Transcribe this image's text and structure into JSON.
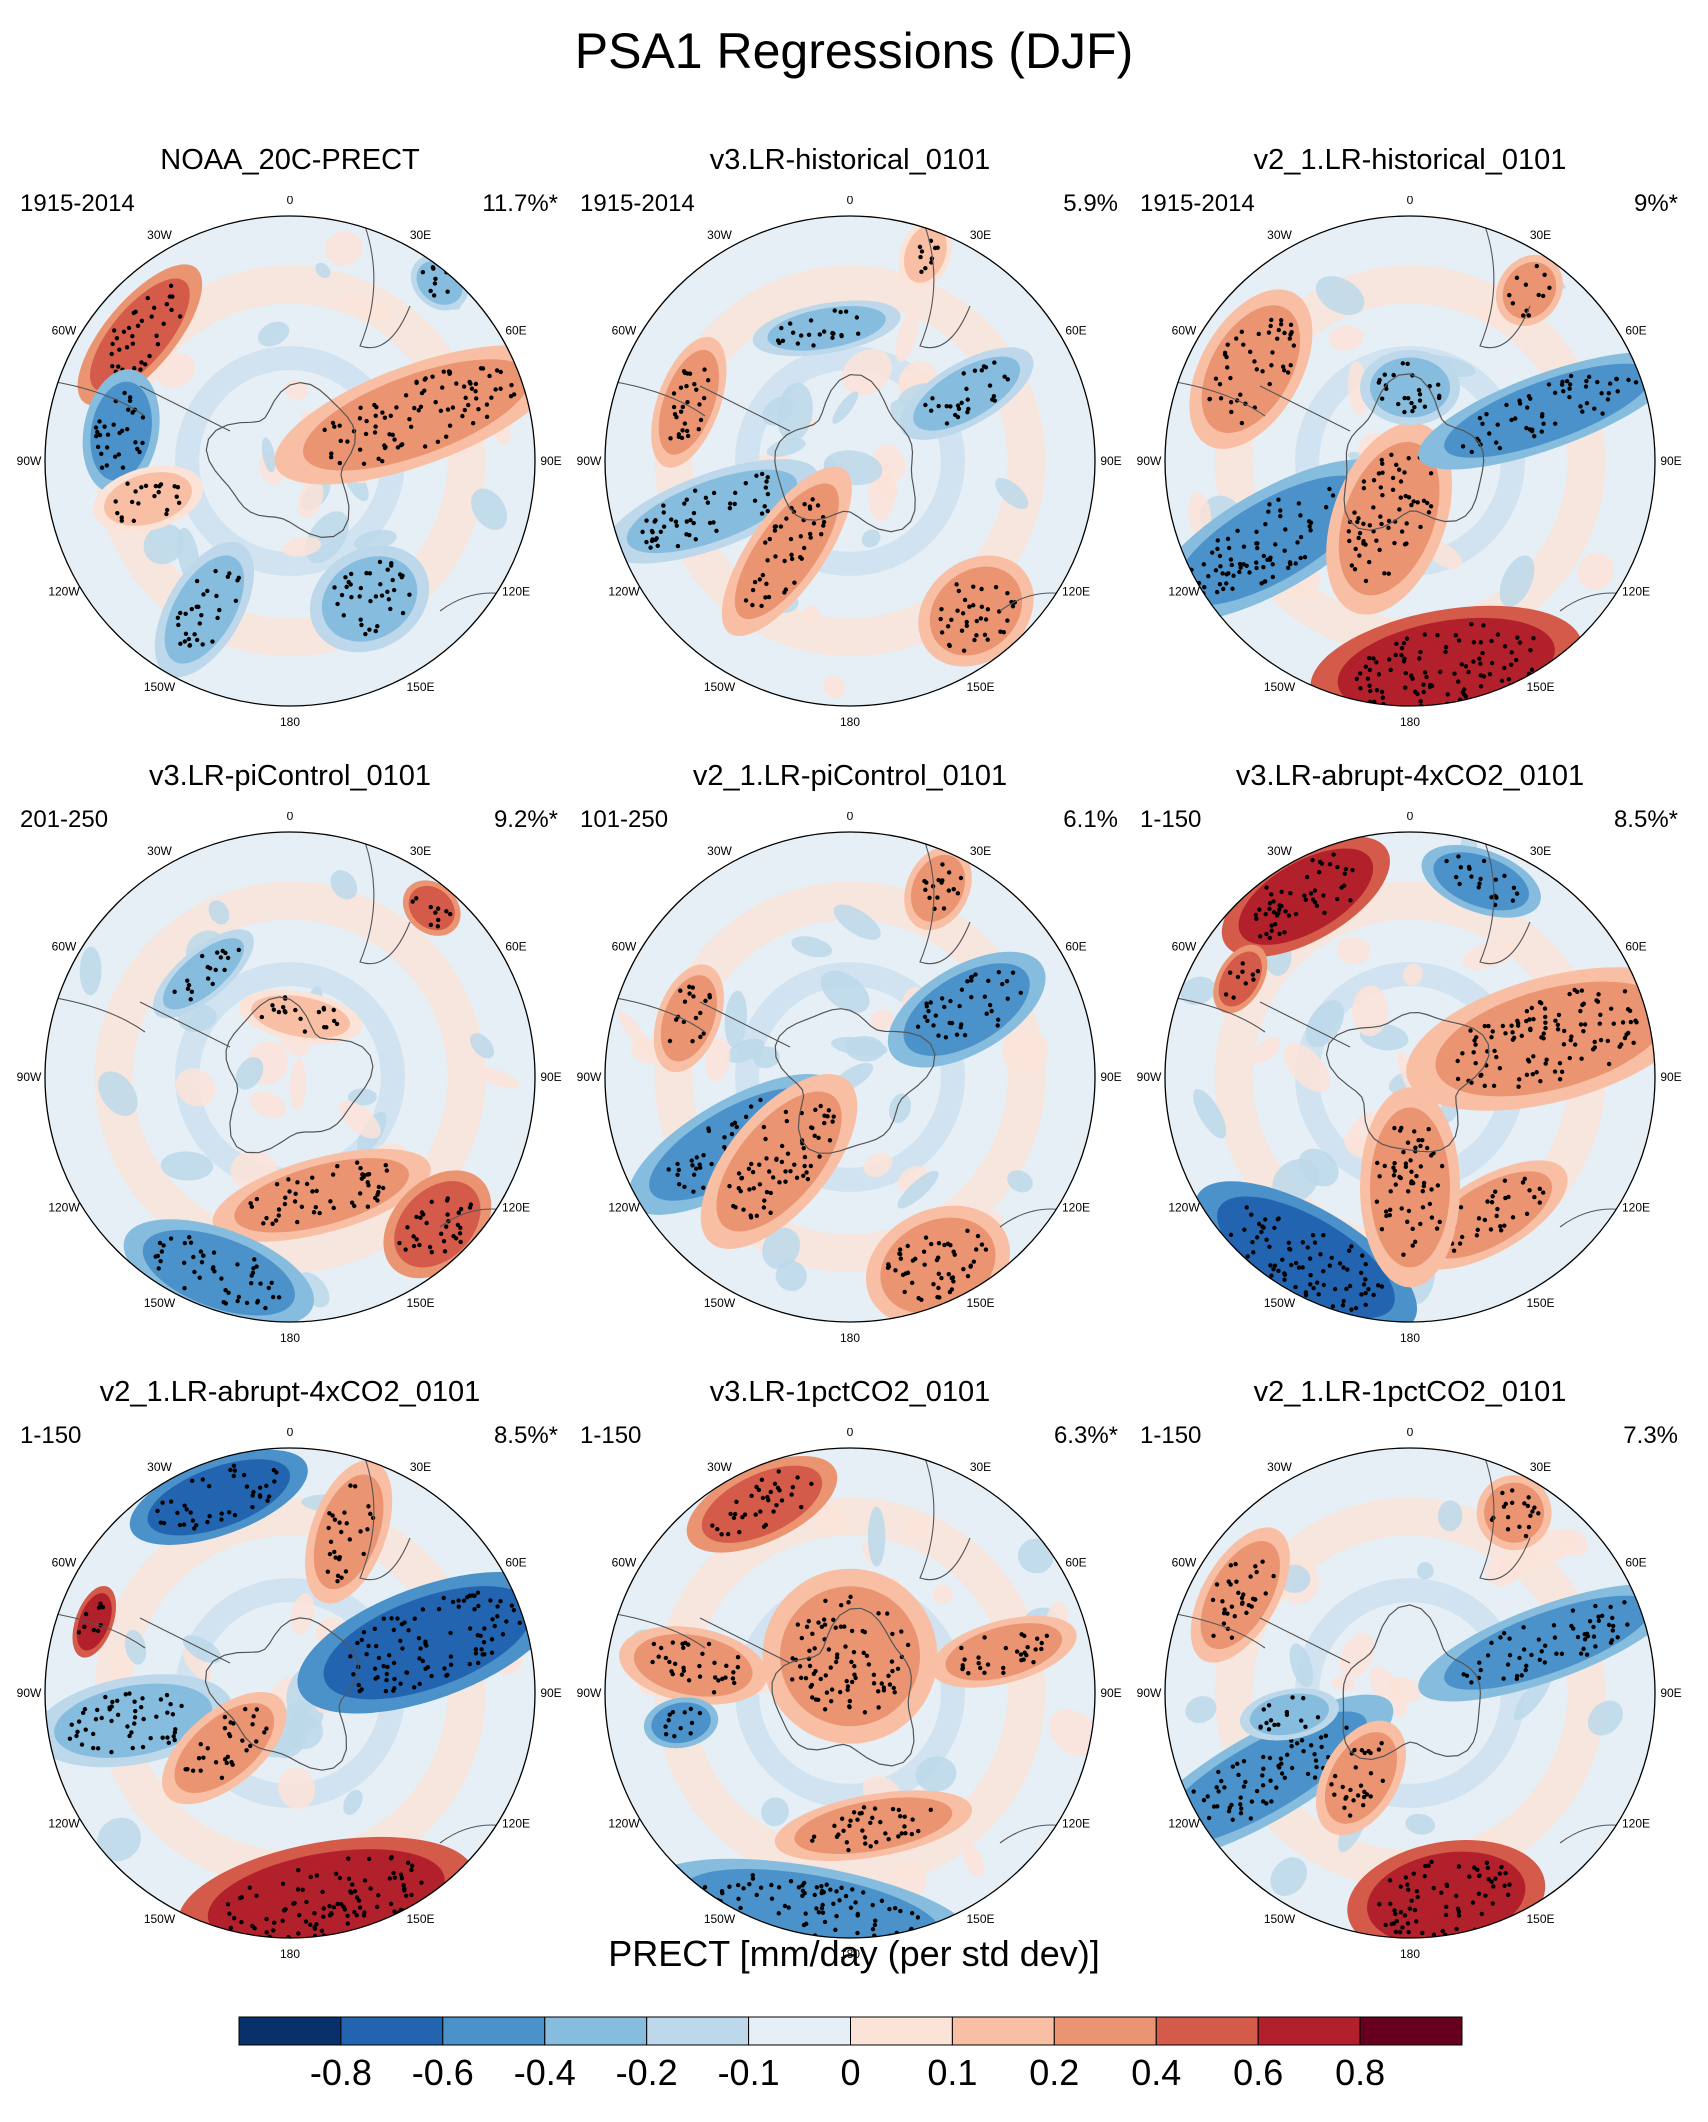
{
  "title": "PSA1 Regressions (DJF)",
  "colors": {
    "levels": [
      "#08306b",
      "#2264b0",
      "#4a92c9",
      "#86bcdd",
      "#bcd8ea",
      "#e6eff6",
      "#fbe3d8",
      "#f8bfa4",
      "#ea9472",
      "#d45a4a",
      "#b2202c",
      "#67001f"
    ],
    "land_outline": "#555555",
    "dot": "#000000"
  },
  "longitude_labels": [
    "0",
    "30E",
    "60E",
    "90E",
    "120E",
    "150E",
    "180",
    "150W",
    "120W",
    "90W",
    "60W",
    "30W"
  ],
  "panels": [
    {
      "title": "NOAA_20C-PRECT",
      "period": "1915-2014",
      "percent": "11.7%*"
    },
    {
      "title": "v3.LR-historical_0101",
      "period": "1915-2014",
      "percent": "5.9%"
    },
    {
      "title": "v2_1.LR-historical_0101",
      "period": "1915-2014",
      "percent": "9%*"
    },
    {
      "title": "v3.LR-piControl_0101",
      "period": "201-250",
      "percent": "9.2%*"
    },
    {
      "title": "v2_1.LR-piControl_0101",
      "period": "101-250",
      "percent": "6.1%"
    },
    {
      "title": "v3.LR-abrupt-4xCO2_0101",
      "period": "1-150",
      "percent": "8.5%*"
    },
    {
      "title": "v2_1.LR-abrupt-4xCO2_0101",
      "period": "1-150",
      "percent": "8.5%*"
    },
    {
      "title": "v3.LR-1pctCO2_0101",
      "period": "1-150",
      "percent": "6.3%*"
    },
    {
      "title": "v2_1.LR-1pctCO2_0101",
      "period": "1-150",
      "percent": "7.3%"
    }
  ],
  "colorbar": {
    "title": "PRECT [mm/day (per std dev)]",
    "labels": [
      "-0.8",
      "-0.6",
      "-0.4",
      "-0.2",
      "-0.1",
      "0",
      "0.1",
      "0.2",
      "0.4",
      "0.6",
      "0.8"
    ]
  }
}
